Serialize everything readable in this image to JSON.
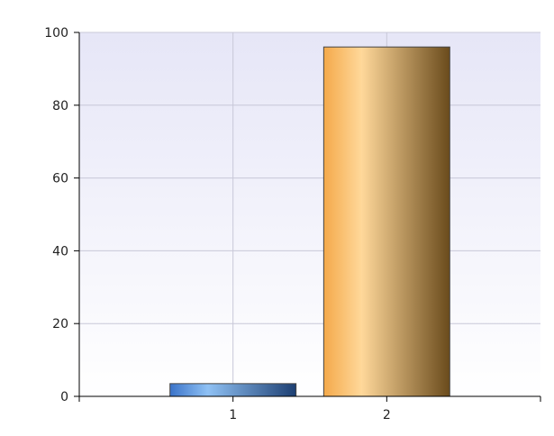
{
  "chart_data": {
    "type": "bar",
    "categories": [
      "1",
      "2"
    ],
    "values": [
      3.5,
      96
    ],
    "ylim": [
      0,
      100
    ],
    "yticks": [
      0,
      20,
      40,
      60,
      80,
      100
    ],
    "grid": true,
    "colors": {
      "plot_bg_top": "#e6e6f7",
      "plot_bg_bottom": "#ffffff",
      "gridline": "#c8c8d8",
      "bar_1_left": "#3a73c9",
      "bar_1_mid": "#8fc1f4",
      "bar_1_right": "#1d3f72",
      "bar_2_left": "#f4a94a",
      "bar_2_mid": "#ffd89a",
      "bar_2_right": "#6a4b1c",
      "bar_border": "#444444",
      "axis": "#000000"
    }
  }
}
